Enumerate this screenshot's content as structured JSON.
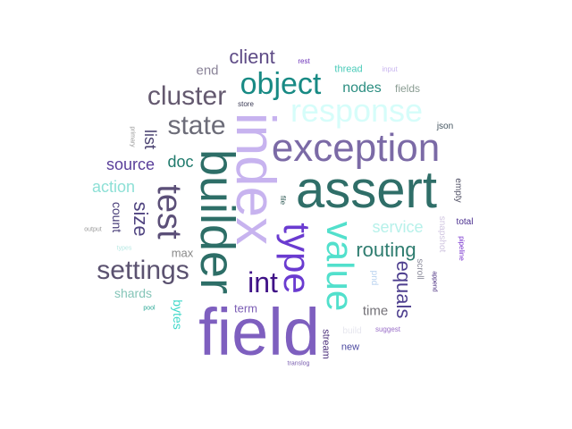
{
  "words": [
    {
      "text": "field",
      "color": "#7e5fbf",
      "rotate": false
    },
    {
      "text": "assert",
      "color": "#2f6e68",
      "rotate": false
    },
    {
      "text": "index",
      "color": "#c7b3ef",
      "rotate": true
    },
    {
      "text": "builder",
      "color": "#2d6e67",
      "rotate": true
    },
    {
      "text": "exception",
      "color": "#7b6aa6",
      "rotate": false
    },
    {
      "text": "value",
      "color": "#52e0cc",
      "rotate": true
    },
    {
      "text": "type",
      "color": "#6a3bd0",
      "rotate": true
    },
    {
      "text": "response",
      "color": "#d6fdfa",
      "rotate": false
    },
    {
      "text": "object",
      "color": "#188a84",
      "rotate": false
    },
    {
      "text": "cluster",
      "color": "#64596f",
      "rotate": false
    },
    {
      "text": "state",
      "color": "#6c6c78",
      "rotate": false
    },
    {
      "text": "settings",
      "color": "#5b5270",
      "rotate": false
    },
    {
      "text": "test",
      "color": "#5b4f78",
      "rotate": true
    },
    {
      "text": "int",
      "color": "#3f1287",
      "rotate": false
    },
    {
      "text": "client",
      "color": "#5e4b86",
      "rotate": false
    },
    {
      "text": "routing",
      "color": "#2e7c6f",
      "rotate": false
    },
    {
      "text": "equals",
      "color": "#4e3f8f",
      "rotate": true
    },
    {
      "text": "size",
      "color": "#4f4380",
      "rotate": true
    },
    {
      "text": "source",
      "color": "#5a3f9a",
      "rotate": false
    },
    {
      "text": "service",
      "color": "#b7f1ea",
      "rotate": false
    },
    {
      "text": "action",
      "color": "#8ee0d6",
      "rotate": false
    },
    {
      "text": "doc",
      "color": "#1f7a6c",
      "rotate": false
    },
    {
      "text": "list",
      "color": "#4b4371",
      "rotate": true
    },
    {
      "text": "nodes",
      "color": "#2a8d80",
      "rotate": false
    },
    {
      "text": "end",
      "color": "#8a8398",
      "rotate": false
    },
    {
      "text": "time",
      "color": "#747278",
      "rotate": false
    },
    {
      "text": "shards",
      "color": "#85c5b8",
      "rotate": false
    },
    {
      "text": "count",
      "color": "#4a3f7a",
      "rotate": true
    },
    {
      "text": "bytes",
      "color": "#40d8c9",
      "rotate": true
    },
    {
      "text": "term",
      "color": "#7d5fb5",
      "rotate": false
    },
    {
      "text": "max",
      "color": "#8a8a8a",
      "rotate": false
    },
    {
      "text": "fields",
      "color": "#8a9c92",
      "rotate": false
    },
    {
      "text": "thread",
      "color": "#49cbb9",
      "rotate": false
    },
    {
      "text": "stream",
      "color": "#4b2f7a",
      "rotate": true
    },
    {
      "text": "new",
      "color": "#4d4aa0",
      "rotate": false
    },
    {
      "text": "json",
      "color": "#445560",
      "rotate": false
    },
    {
      "text": "empty",
      "color": "#56566a",
      "rotate": true
    },
    {
      "text": "total",
      "color": "#4a2f8f",
      "rotate": false
    },
    {
      "text": "snapshot",
      "color": "#d0c5e0",
      "rotate": true
    },
    {
      "text": "scroll",
      "color": "#8a8a9a",
      "rotate": true
    },
    {
      "text": "pipeline",
      "color": "#7a36cf",
      "rotate": true
    },
    {
      "text": "build",
      "color": "#e6e6ee",
      "rotate": false
    },
    {
      "text": "suggest",
      "color": "#9a6fc8",
      "rotate": false
    },
    {
      "text": "pnd",
      "color": "#b8d2ef",
      "rotate": true
    },
    {
      "text": "rest",
      "color": "#6a2fb8",
      "rotate": false
    },
    {
      "text": "input",
      "color": "#c9b6ef",
      "rotate": false
    },
    {
      "text": "store",
      "color": "#3b3b55",
      "rotate": false
    },
    {
      "text": "primary",
      "color": "#9a9a9a",
      "rotate": true
    },
    {
      "text": "output",
      "color": "#9a9a9a",
      "rotate": false
    },
    {
      "text": "types",
      "color": "#b7e8e3",
      "rotate": false
    },
    {
      "text": "pool",
      "color": "#2aa896",
      "rotate": false
    },
    {
      "text": "file",
      "color": "#2f5a55",
      "rotate": true
    },
    {
      "text": "append",
      "color": "#4a2f80",
      "rotate": true
    },
    {
      "text": "translog",
      "color": "#7a5fb0",
      "rotate": false
    }
  ]
}
